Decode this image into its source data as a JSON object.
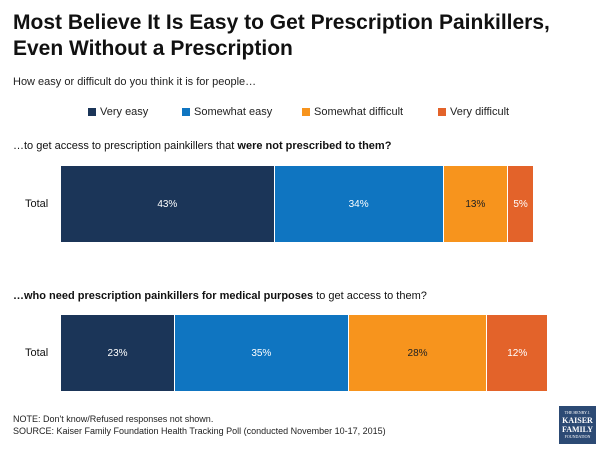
{
  "title": "Most Believe It Is Easy to Get Prescription Painkillers, Even Without a Prescription",
  "subtitle": "How easy or difficult do you think it is for people…",
  "legend": [
    {
      "label": "Very easy",
      "color": "#1b3558"
    },
    {
      "label": "Somewhat easy",
      "color": "#0f75c1"
    },
    {
      "label": "Somewhat difficult",
      "color": "#f7941d"
    },
    {
      "label": "Very difficult",
      "color": "#e3632a"
    }
  ],
  "chart_data": [
    {
      "type": "bar",
      "orientation": "horizontal",
      "stacked": true,
      "question_prefix": "…to get access to prescription painkillers that ",
      "question_bold": "were not prescribed to them?",
      "question_suffix": "",
      "categories": [
        "Total"
      ],
      "series": [
        {
          "name": "Very easy",
          "values": [
            43
          ],
          "label": "43%"
        },
        {
          "name": "Somewhat easy",
          "values": [
            34
          ],
          "label": "34%"
        },
        {
          "name": "Somewhat difficult",
          "values": [
            13
          ],
          "label": "13%"
        },
        {
          "name": "Very difficult",
          "values": [
            5
          ],
          "label": "5%"
        }
      ],
      "unit": "%"
    },
    {
      "type": "bar",
      "orientation": "horizontal",
      "stacked": true,
      "question_prefix": "",
      "question_bold": "…who need prescription painkillers for medical purposes",
      "question_suffix": " to get access to them?",
      "categories": [
        "Total"
      ],
      "series": [
        {
          "name": "Very easy",
          "values": [
            23
          ],
          "label": "23%"
        },
        {
          "name": "Somewhat easy",
          "values": [
            35
          ],
          "label": "35%"
        },
        {
          "name": "Somewhat difficult",
          "values": [
            28
          ],
          "label": "28%"
        },
        {
          "name": "Very difficult",
          "values": [
            12
          ],
          "label": "12%"
        }
      ],
      "unit": "%"
    }
  ],
  "note": "NOTE: Don't know/Refused responses not shown.",
  "source": "SOURCE: Kaiser Family Foundation Health Tracking Poll (conducted November 10-17, 2015)",
  "logo": {
    "top": "THE HENRY J.",
    "line1": "KAISER",
    "line2": "FAMILY",
    "bottom": "FOUNDATION"
  }
}
